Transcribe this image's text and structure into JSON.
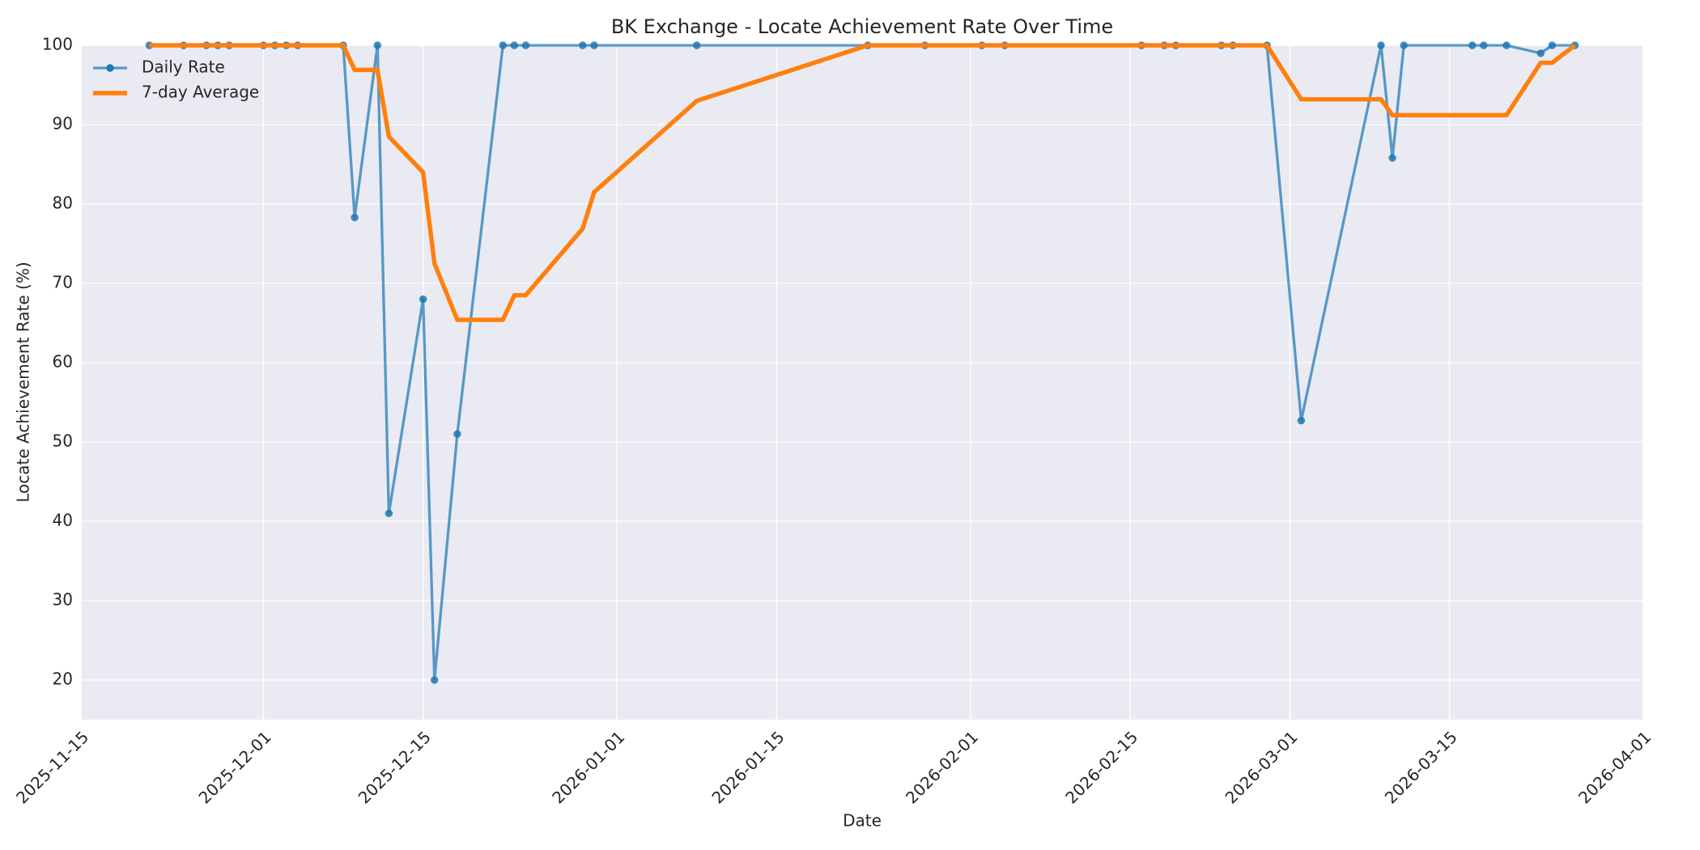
{
  "chart_data": {
    "type": "line",
    "title": "BK Exchange - Locate Achievement Rate Over Time",
    "xlabel": "Date",
    "ylabel": "Locate Achievement Rate (%)",
    "x": [
      "2025-11-21",
      "2025-11-24",
      "2025-11-26",
      "2025-11-27",
      "2025-11-28",
      "2025-12-01",
      "2025-12-02",
      "2025-12-03",
      "2025-12-04",
      "2025-12-08",
      "2025-12-09",
      "2025-12-11",
      "2025-12-12",
      "2025-12-15",
      "2025-12-16",
      "2025-12-18",
      "2025-12-22",
      "2025-12-23",
      "2025-12-24",
      "2025-12-29",
      "2025-12-30",
      "2026-01-08",
      "2026-01-23",
      "2026-01-28",
      "2026-02-02",
      "2026-02-04",
      "2026-02-16",
      "2026-02-18",
      "2026-02-19",
      "2026-02-23",
      "2026-02-24",
      "2026-02-27",
      "2026-03-02",
      "2026-03-09",
      "2026-03-10",
      "2026-03-11",
      "2026-03-17",
      "2026-03-18",
      "2026-03-20",
      "2026-03-23",
      "2026-03-24",
      "2026-03-26"
    ],
    "series": [
      {
        "name": "Daily Rate",
        "color": "#1f77b4",
        "markers": true,
        "values": [
          100,
          100,
          100,
          100,
          100,
          100,
          100,
          100,
          100,
          100,
          78.3,
          100,
          41,
          68,
          20,
          51,
          100,
          100,
          100,
          100,
          100,
          100,
          100,
          100,
          100,
          100,
          100,
          100,
          100,
          100,
          100,
          100,
          52.7,
          100,
          85.8,
          100,
          100,
          100,
          100,
          99,
          100,
          100
        ]
      },
      {
        "name": "7-day Average",
        "color": "#ff7f0e",
        "markers": false,
        "values": [
          100,
          100,
          100,
          100,
          100,
          100,
          100,
          100,
          100,
          100,
          96.9,
          96.9,
          88.5,
          84,
          72.5,
          65.4,
          65.4,
          68.5,
          68.5,
          76.9,
          81.5,
          93,
          100,
          100,
          100,
          100,
          100,
          100,
          100,
          100,
          100,
          100,
          93.2,
          93.2,
          91.2,
          91.2,
          91.2,
          91.2,
          91.2,
          97.8,
          97.8,
          100
        ]
      }
    ],
    "xlim": [
      "2025-11-15",
      "2026-04-01"
    ],
    "xticks": [
      "2025-11-15",
      "2025-12-01",
      "2025-12-15",
      "2026-01-01",
      "2026-01-15",
      "2026-02-01",
      "2026-02-15",
      "2026-03-01",
      "2026-03-15",
      "2026-04-01"
    ],
    "ylim": [
      15,
      100
    ],
    "yticks": [
      20,
      30,
      40,
      50,
      60,
      70,
      80,
      90,
      100
    ],
    "grid": true,
    "legend": "upper left"
  }
}
